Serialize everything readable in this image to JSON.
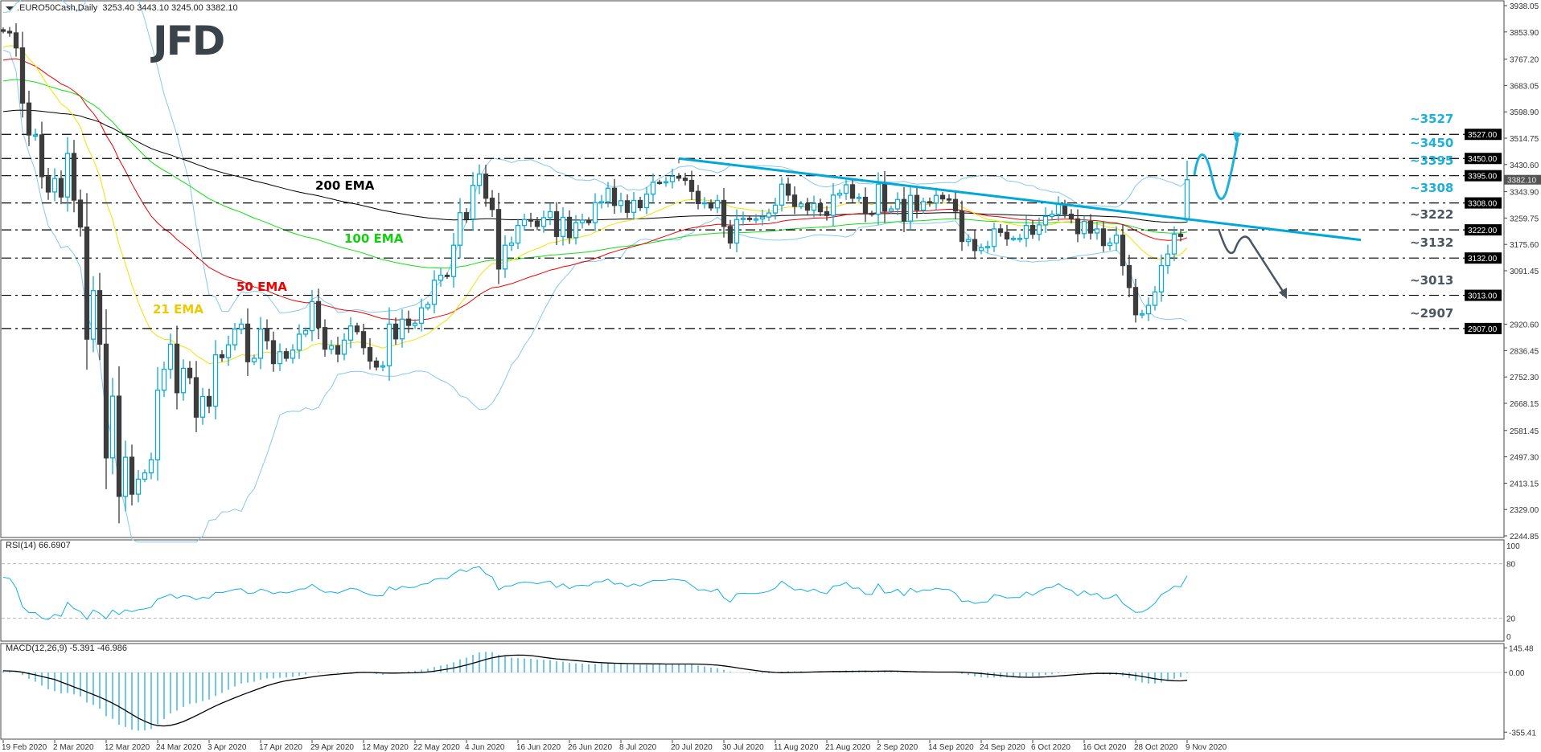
{
  "header": {
    "symbol": ".EURO50Cash,Daily",
    "ohlc_text": "3253.40 3443.10 3245.00 3382.10"
  },
  "logo": "JFD",
  "panes": {
    "rsi_label": "RSI(14) 66.6907",
    "macd_label": "MACD(12,26,9) -5.391 -46.986"
  },
  "ema_labels": {
    "ema200": "200 EMA",
    "ema100": "100 EMA",
    "ema50": "50 EMA",
    "ema21": "21 EMA"
  },
  "colors": {
    "bull": "#10a8d8",
    "bear": "#3c3c3c",
    "ema21": "#f2e200",
    "ema50": "#ee0000",
    "ema100": "#10e010",
    "ema200": "#000000",
    "bollinger": "#86c8f0",
    "rsi": "#10b0e0",
    "macd_hist": "#20aee0",
    "macd_signal": "#000000",
    "trendline": "#00a8d8",
    "level_up": "#1cb0dc",
    "level_down": "#4a5560"
  },
  "chart_data": {
    "type": "candlestick",
    "title": ".EURO50Cash,Daily",
    "price_axis": {
      "range": [
        2244.85,
        3938.05
      ],
      "ticks": [
        "3938.05",
        "3853.90",
        "3767.20",
        "3683.05",
        "3598.90",
        "3514.75",
        "3430.60",
        "3343.90",
        "3259.75",
        "3175.60",
        "3091.45",
        "2920.60",
        "2836.45",
        "2752.30",
        "2668.15",
        "2581.45",
        "2497.30",
        "2413.15",
        "2329.00",
        "2244.85"
      ],
      "current_price": "3382.10"
    },
    "date_labels": [
      "19 Feb 2020",
      "2 Mar 2020",
      "12 Mar 2020",
      "24 Mar 2020",
      "3 Apr 2020",
      "17 Apr 2020",
      "29 Apr 2020",
      "12 May 2020",
      "22 May 2020",
      "4 Jun 2020",
      "16 Jun 2020",
      "26 Jun 2020",
      "8 Jul 2020",
      "20 Jul 2020",
      "30 Jul 2020",
      "11 Aug 2020",
      "21 Aug 2020",
      "2 Sep 2020",
      "14 Sep 2020",
      "24 Sep 2020",
      "6 Oct 2020",
      "16 Oct 2020",
      "28 Oct 2020",
      "9 Nov 2020"
    ],
    "bars_per_date_label": 8,
    "closes": [
      3856,
      3851,
      3803,
      3627,
      3525,
      3525,
      3392,
      3343,
      3386,
      3327,
      3466,
      3317,
      3231,
      2873,
      3028,
      2857,
      2494,
      2691,
      2371,
      2496,
      2378,
      2426,
      2446,
      2488,
      2710,
      2777,
      2857,
      2702,
      2780,
      2750,
      2624,
      2690,
      2659,
      2823,
      2814,
      2855,
      2905,
      2921,
      2801,
      2812,
      2905,
      2868,
      2795,
      2833,
      2812,
      2838,
      2889,
      2900,
      2993,
      2910,
      2841,
      2852,
      2825,
      2870,
      2915,
      2897,
      2846,
      2803,
      2784,
      2788,
      2921,
      2874,
      2937,
      2917,
      2924,
      2973,
      2984,
      3061,
      3077,
      3073,
      3173,
      3277,
      3257,
      3364,
      3400,
      3323,
      3287,
      3097,
      3173,
      3180,
      3236,
      3255,
      3250,
      3233,
      3261,
      3280,
      3201,
      3262,
      3197,
      3245,
      3253,
      3245,
      3309,
      3312,
      3355,
      3300,
      3315,
      3278,
      3316,
      3293,
      3336,
      3374,
      3373,
      3376,
      3393,
      3387,
      3380,
      3345,
      3306,
      3309,
      3292,
      3316,
      3233,
      3180,
      3255,
      3259,
      3257,
      3257,
      3263,
      3276,
      3301,
      3368,
      3333,
      3297,
      3305,
      3285,
      3306,
      3280,
      3268,
      3333,
      3339,
      3366,
      3323,
      3326,
      3275,
      3272,
      3368,
      3282,
      3289,
      3319,
      3250,
      3332,
      3285,
      3312,
      3308,
      3332,
      3321,
      3319,
      3282,
      3185,
      3191,
      3156,
      3165,
      3169,
      3225,
      3214,
      3193,
      3195,
      3195,
      3236,
      3208,
      3238,
      3265,
      3272,
      3304,
      3272,
      3257,
      3210,
      3249,
      3212,
      3225,
      3172,
      3180,
      3205,
      3108,
      3038,
      2951,
      2954,
      2981,
      3024,
      3108,
      3145,
      3208,
      3201,
      3382.1
    ],
    "last_bar": {
      "open": 3253.4,
      "high": 3443.1,
      "low": 3245.0,
      "close": 3382.1
    },
    "ema_start_values": {
      "ema21": 3801,
      "ema50": 3760,
      "ema100": 3694,
      "ema200": 3597
    },
    "levels": [
      {
        "value": 3527,
        "label": "~3527",
        "axis": "3527.00",
        "tone": "up"
      },
      {
        "value": 3450,
        "label": "~3450",
        "axis": "3450.00",
        "tone": "up"
      },
      {
        "value": 3395,
        "label": "~3395",
        "axis": "3395.00",
        "tone": "up"
      },
      {
        "value": 3308,
        "label": "~3308",
        "axis": "3308.00",
        "tone": "up"
      },
      {
        "value": 3222,
        "label": "~3222",
        "axis": "3222.00",
        "tone": "down"
      },
      {
        "value": 3132,
        "label": "~3132",
        "axis": "3132.00",
        "tone": "down"
      },
      {
        "value": 3013,
        "label": "~3013",
        "axis": "3013.00",
        "tone": "down"
      },
      {
        "value": 2907,
        "label": "~2907",
        "axis": "2907.00",
        "tone": "down"
      }
    ],
    "trendline": {
      "from": {
        "date": "20 Jul 2020",
        "price": 3450
      },
      "to_price_at_right": 3190
    },
    "rsi": {
      "period": 14,
      "ticks": [
        "100",
        "80",
        "20",
        "0"
      ],
      "levels": [
        80,
        20
      ],
      "last": 66.6907
    },
    "macd": {
      "fast": 12,
      "slow": 26,
      "signal": 9,
      "ticks": [
        "145.48",
        "0.00",
        "-355.41"
      ],
      "range": [
        -355.41,
        145.48
      ],
      "last_main": -5.391,
      "last_signal": -46.986
    }
  }
}
